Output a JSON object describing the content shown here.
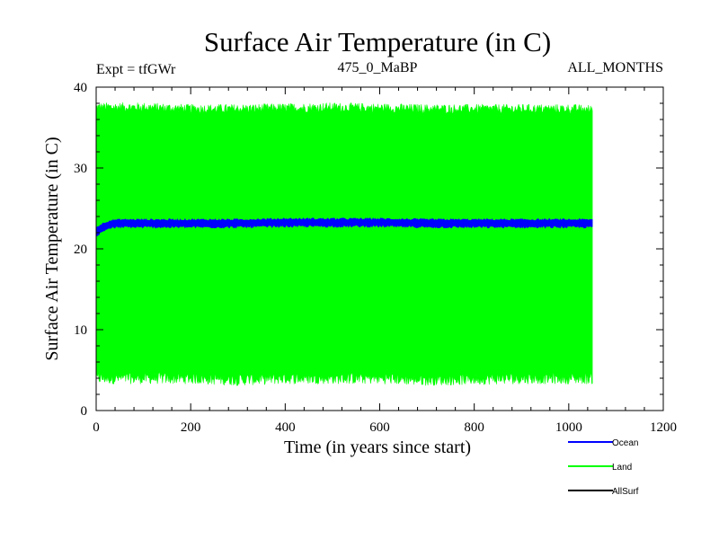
{
  "chart_data": {
    "type": "area",
    "title": "Surface Air Temperature (in C)",
    "subtitle_left": "Expt = tfGWr",
    "subtitle_center": "475_0_MaBP",
    "subtitle_right": "ALL_MONTHS",
    "xlabel": "Time (in years since start)",
    "ylabel": "Surface Air Temperature (in C)",
    "xlim": [
      0,
      1200
    ],
    "ylim": [
      0,
      40
    ],
    "xticks": [
      0,
      200,
      400,
      600,
      800,
      1000,
      1200
    ],
    "yticks": [
      0,
      10,
      20,
      30,
      40
    ],
    "xtick_labels": [
      "0",
      "200",
      "400",
      "600",
      "800",
      "1000",
      "1200"
    ],
    "ytick_labels": [
      "0",
      "10",
      "20",
      "30",
      "40"
    ],
    "data_x_range": [
      0,
      1050
    ],
    "series": [
      {
        "name": "Ocean",
        "color": "#0000ff",
        "x": [
          0,
          10,
          20,
          30,
          50,
          100,
          200,
          300,
          400,
          500,
          600,
          700,
          800,
          900,
          1000,
          1050
        ],
        "min": [
          21.6,
          22.0,
          22.4,
          22.6,
          22.7,
          22.7,
          22.7,
          22.7,
          22.8,
          22.8,
          22.8,
          22.7,
          22.7,
          22.7,
          22.7,
          22.7
        ],
        "max": [
          22.6,
          23.0,
          23.3,
          23.5,
          23.6,
          23.6,
          23.6,
          23.6,
          23.7,
          23.7,
          23.7,
          23.6,
          23.6,
          23.6,
          23.6,
          23.6
        ]
      },
      {
        "name": "Land",
        "color": "#00ff00",
        "x": [
          0,
          100,
          200,
          300,
          400,
          500,
          600,
          700,
          800,
          900,
          1000,
          1050
        ],
        "min": [
          4.0,
          4.0,
          4.0,
          3.8,
          4.0,
          4.0,
          4.0,
          3.8,
          3.9,
          4.0,
          4.0,
          4.0
        ],
        "max": [
          37.5,
          37.5,
          37.3,
          37.3,
          37.4,
          37.5,
          37.4,
          37.3,
          37.3,
          37.3,
          37.3,
          37.2
        ]
      },
      {
        "name": "AllSurf",
        "color": "#000000",
        "x": [],
        "min": [],
        "max": []
      }
    ]
  }
}
